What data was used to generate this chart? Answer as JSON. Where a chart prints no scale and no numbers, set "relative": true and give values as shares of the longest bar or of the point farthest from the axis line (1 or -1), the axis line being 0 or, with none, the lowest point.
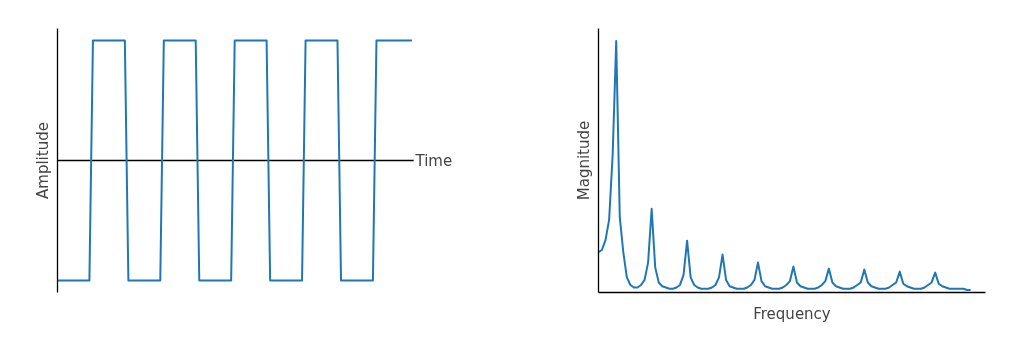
{
  "chart_data": [
    {
      "type": "line",
      "relative": true,
      "xlabel": "Time",
      "ylabel": "Amplitude",
      "color": "#1f77b4",
      "categories": [
        null,
        null,
        null,
        null,
        null,
        null,
        null,
        null,
        null,
        null,
        null,
        null,
        null,
        null,
        null,
        null,
        null,
        null,
        null,
        null,
        null,
        null,
        null,
        null,
        null,
        null,
        null,
        null,
        null,
        null,
        null,
        null,
        null,
        null,
        null,
        null,
        null,
        null,
        null,
        null,
        null,
        null,
        null,
        null,
        null,
        null,
        null,
        null,
        null,
        null,
        null,
        null,
        null,
        null,
        null,
        null,
        null,
        null,
        null,
        null,
        null,
        null,
        null,
        null,
        null,
        null,
        null,
        null,
        null,
        null,
        null,
        null,
        null,
        null,
        null,
        null,
        null,
        null,
        null,
        null,
        null,
        null,
        null,
        null,
        null,
        null,
        null,
        null,
        null,
        null,
        null,
        null,
        null,
        null,
        null,
        null,
        null,
        null,
        null,
        null,
        null
      ],
      "values": [
        -1,
        -1,
        -1,
        -1,
        -1,
        -1,
        -1,
        -1,
        -1,
        -1,
        1,
        1,
        1,
        1,
        1,
        1,
        1,
        1,
        1,
        1,
        -1,
        -1,
        -1,
        -1,
        -1,
        -1,
        -1,
        -1,
        -1,
        -1,
        1,
        1,
        1,
        1,
        1,
        1,
        1,
        1,
        1,
        1,
        -1,
        -1,
        -1,
        -1,
        -1,
        -1,
        -1,
        -1,
        -1,
        -1,
        1,
        1,
        1,
        1,
        1,
        1,
        1,
        1,
        1,
        1,
        -1,
        -1,
        -1,
        -1,
        -1,
        -1,
        -1,
        -1,
        -1,
        -1,
        1,
        1,
        1,
        1,
        1,
        1,
        1,
        1,
        1,
        1,
        -1,
        -1,
        -1,
        -1,
        -1,
        -1,
        -1,
        -1,
        -1,
        -1,
        1,
        1,
        1,
        1,
        1,
        1,
        1,
        1,
        1,
        1,
        1
      ]
    },
    {
      "type": "line",
      "relative": true,
      "xlabel": "Frequency",
      "ylabel": "Magnitude",
      "color": "#1f77b4",
      "categories": [
        null,
        null,
        null,
        null,
        null,
        null,
        null,
        null,
        null,
        null,
        null,
        null,
        null,
        null,
        null,
        null,
        null,
        null,
        null,
        null,
        null,
        null,
        null,
        null,
        null,
        null,
        null,
        null,
        null,
        null,
        null,
        null,
        null,
        null,
        null,
        null,
        null,
        null,
        null,
        null,
        null,
        null,
        null,
        null,
        null,
        null,
        null,
        null,
        null,
        null,
        null,
        null,
        null,
        null,
        null,
        null,
        null,
        null,
        null,
        null,
        null,
        null,
        null,
        null,
        null,
        null,
        null,
        null,
        null,
        null,
        null,
        null,
        null,
        null,
        null,
        null,
        null,
        null,
        null,
        null,
        null,
        null,
        null,
        null,
        null,
        null,
        null,
        null,
        null,
        null,
        null,
        null,
        null,
        null,
        null,
        null,
        null,
        null,
        null,
        null,
        null,
        null,
        null,
        null,
        null,
        null
      ],
      "values": [
        0.16,
        0.17,
        0.21,
        0.29,
        0.55,
        1,
        0.3,
        0.16,
        0.06,
        0.03,
        0.02,
        0.02,
        0.03,
        0.05,
        0.12,
        0.333,
        0.1,
        0.04,
        0.025,
        0.02,
        0.015,
        0.015,
        0.02,
        0.03,
        0.07,
        0.206,
        0.06,
        0.03,
        0.02,
        0.015,
        0.015,
        0.015,
        0.02,
        0.03,
        0.06,
        0.151,
        0.05,
        0.025,
        0.02,
        0.015,
        0.015,
        0.015,
        0.02,
        0.03,
        0.05,
        0.119,
        0.045,
        0.025,
        0.02,
        0.015,
        0.015,
        0.015,
        0.02,
        0.03,
        0.045,
        0.103,
        0.04,
        0.025,
        0.02,
        0.015,
        0.015,
        0.015,
        0.02,
        0.03,
        0.045,
        0.095,
        0.04,
        0.025,
        0.02,
        0.015,
        0.015,
        0.015,
        0.02,
        0.03,
        0.04,
        0.091,
        0.04,
        0.025,
        0.02,
        0.015,
        0.015,
        0.015,
        0.02,
        0.03,
        0.04,
        0.083,
        0.035,
        0.025,
        0.02,
        0.015,
        0.015,
        0.015,
        0.02,
        0.03,
        0.04,
        0.079,
        0.035,
        0.025,
        0.02,
        0.015,
        0.015,
        0.015,
        0.015,
        0.015,
        0.01,
        0.01
      ]
    }
  ]
}
